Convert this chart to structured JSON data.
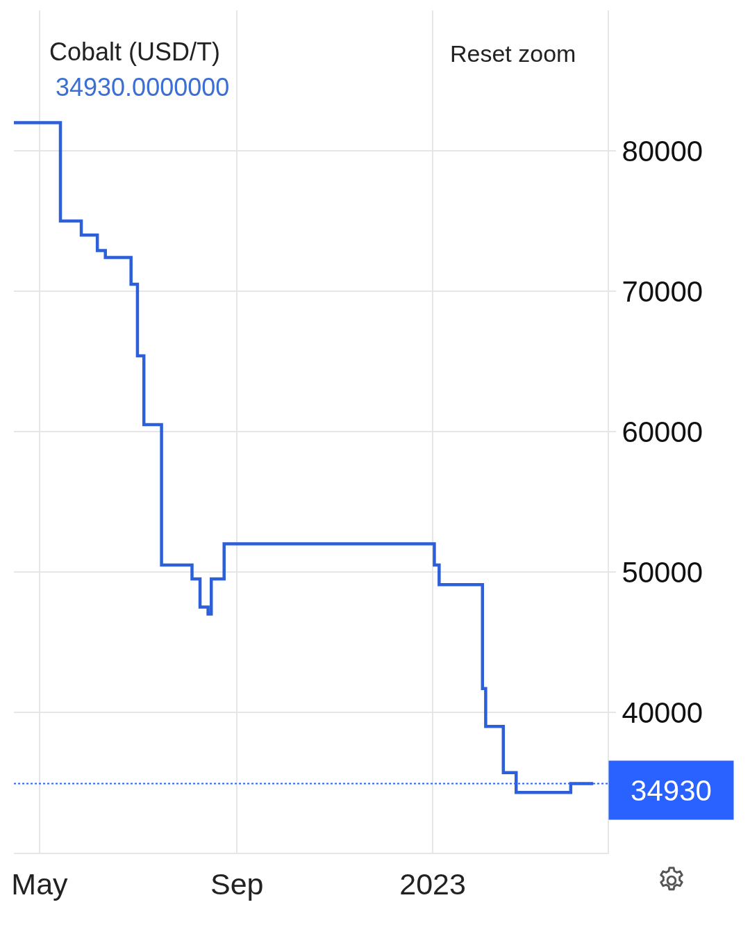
{
  "chart_data": {
    "type": "step",
    "title": "Cobalt (USD/T)",
    "subtitle": "34930.0000000",
    "annotations": [
      "Reset zoom"
    ],
    "x": [
      "2022-04-15",
      "2022-05-14",
      "2022-05-27",
      "2022-06-06",
      "2022-06-11",
      "2022-06-27",
      "2022-07-01",
      "2022-07-05",
      "2022-07-16",
      "2022-08-04",
      "2022-08-09",
      "2022-08-14",
      "2022-08-16",
      "2022-08-24",
      "2023-01-02",
      "2023-01-05",
      "2023-02-01",
      "2023-02-03",
      "2023-02-14",
      "2023-02-22",
      "2023-03-28",
      "2023-04-11"
    ],
    "series": [
      {
        "color": "#2d5fd8",
        "values": [
          82000,
          75000,
          74000,
          72900,
          72400,
          70500,
          65400,
          60500,
          50500,
          49500,
          47500,
          47000,
          49500,
          52000,
          50500,
          49100,
          41700,
          39000,
          35700,
          34300,
          34930,
          34930
        ]
      }
    ],
    "xlim": [
      "2022-04-15",
      "2023-04-20"
    ],
    "xticks": [
      {
        "value": "2022-05-01",
        "label": "May"
      },
      {
        "value": "2022-09-01",
        "label": "Sep"
      },
      {
        "value": "2023-01-01",
        "label": "2023"
      }
    ],
    "ylim": [
      30000,
      90000
    ],
    "yticks": [
      40000,
      50000,
      60000,
      70000,
      80000
    ],
    "ref_lines": [
      {
        "axis": "y",
        "value": 34930,
        "label": "34930",
        "color": "#2962ff",
        "line_style": "dotted"
      }
    ],
    "grid": true
  }
}
